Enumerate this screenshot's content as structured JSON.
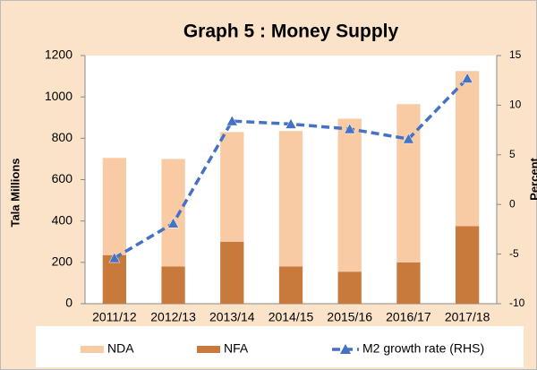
{
  "chart_data": {
    "type": "bar",
    "title": "Graph 5 : Money Supply",
    "ylabel": "Tala Millions",
    "y2label": "Percent",
    "categories": [
      "2011/12",
      "2012/13",
      "2013/14",
      "2014/15",
      "2015/16",
      "2016/17",
      "2017/18"
    ],
    "series": [
      {
        "name": "NDA",
        "type": "bar",
        "color": "#f9cba4",
        "values": [
          470,
          520,
          530,
          655,
          740,
          765,
          750
        ]
      },
      {
        "name": "NFA",
        "type": "bar",
        "color": "#c87a3c",
        "values": [
          235,
          180,
          300,
          180,
          155,
          200,
          375
        ]
      },
      {
        "name": "M2 growth rate (RHS)",
        "type": "line",
        "axis": "y2",
        "color": "#4472c4",
        "values": [
          -5.4,
          -1.9,
          8.4,
          8.1,
          7.6,
          6.6,
          12.7
        ]
      }
    ],
    "ylim": [
      0,
      1200
    ],
    "yticks": [
      0,
      200,
      400,
      600,
      800,
      1000,
      1200
    ],
    "y2lim": [
      -10,
      15
    ],
    "y2ticks": [
      -10,
      -5,
      0,
      5,
      10,
      15
    ],
    "grid": false,
    "stacked": true,
    "legend": "bottom"
  }
}
